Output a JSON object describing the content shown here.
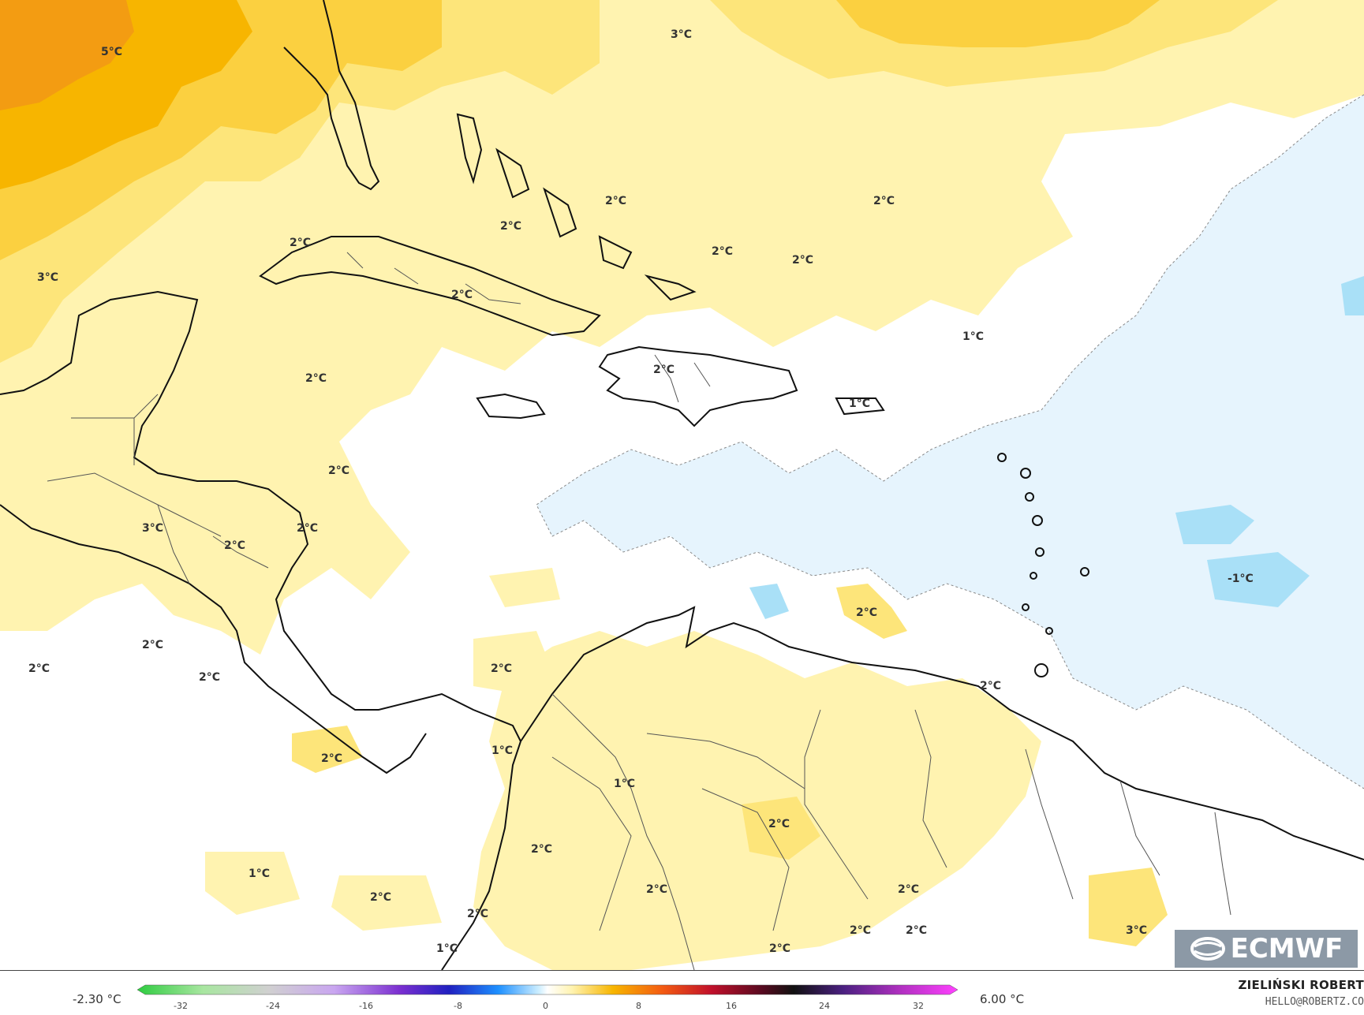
{
  "map": {
    "labels": [
      {
        "text": "5°C"
      },
      {
        "text": "3°C"
      },
      {
        "text": "3°C"
      },
      {
        "text": "2°C"
      },
      {
        "text": "2°C"
      },
      {
        "text": "2°C"
      },
      {
        "text": "2°C"
      },
      {
        "text": "2°C"
      },
      {
        "text": "2°C"
      },
      {
        "text": "2°C"
      },
      {
        "text": "2°C"
      },
      {
        "text": "1°C"
      },
      {
        "text": "2°C"
      },
      {
        "text": "1°C"
      },
      {
        "text": "2°C"
      },
      {
        "text": "3°C"
      },
      {
        "text": "2°C"
      },
      {
        "text": "2°C"
      },
      {
        "text": "-1°C"
      },
      {
        "text": "2°C"
      },
      {
        "text": "2°C"
      },
      {
        "text": "2°C"
      },
      {
        "text": "2°C"
      },
      {
        "text": "2°C"
      },
      {
        "text": "2°C"
      },
      {
        "text": "1°C"
      },
      {
        "text": "1°C"
      },
      {
        "text": "2°C"
      },
      {
        "text": "2°C"
      },
      {
        "text": "2°C"
      },
      {
        "text": "1°C"
      },
      {
        "text": "2°C"
      },
      {
        "text": "2°C"
      },
      {
        "text": "2°C"
      },
      {
        "text": "1°C"
      },
      {
        "text": "2°C"
      },
      {
        "text": "3°C"
      },
      {
        "text": "2°C"
      },
      {
        "text": "2°C"
      },
      {
        "text": "2°C"
      }
    ]
  },
  "legend": {
    "min_label": "-2.30 °C",
    "max_label": "6.00 °C",
    "ticks": [
      "-32",
      "-24",
      "-16",
      "-8",
      "0",
      "8",
      "16",
      "24",
      "32"
    ]
  },
  "credits": {
    "author": "ZIELIŃSKI ROBERT",
    "email": "HELLO@ROBERTZ.CO",
    "logo_text": "ECMWF"
  },
  "colors": {
    "ocean_neutral": "#ffffff",
    "warm_1": "#fff3b0",
    "warm_2": "#fde57a",
    "warm_3": "#fbd040",
    "warm_4": "#f7b500",
    "warm_5": "#f39c12",
    "cool_1": "#e6f4fd",
    "cool_2": "#a9e0f7",
    "coast": "#111111",
    "borders": "#555555"
  }
}
